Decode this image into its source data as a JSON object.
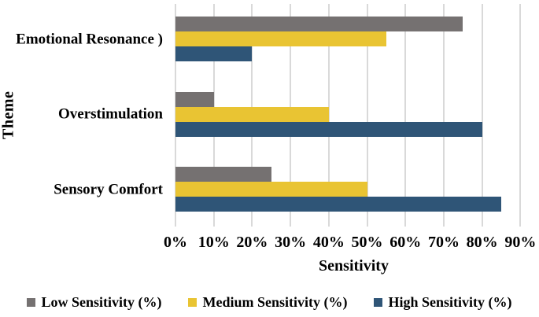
{
  "figure": {
    "background": "#ffffff",
    "text_color": "#000000"
  },
  "chart_data": {
    "type": "bar",
    "orientation": "horizontal",
    "title": "",
    "xlabel": "Sensitivity",
    "ylabel": "Theme",
    "categories": [
      "Emotional Resonance )",
      "Overstimulation",
      "Sensory Comfort"
    ],
    "series": [
      {
        "name": "Low Sensitivity (%)",
        "color": "#757171",
        "values": [
          75,
          10,
          25
        ]
      },
      {
        "name": "Medium Sensitivity (%)",
        "color": "#E9C433",
        "values": [
          55,
          40,
          50
        ]
      },
      {
        "name": "High Sensitivity (%)",
        "color": "#2F5577",
        "values": [
          20,
          80,
          85
        ]
      }
    ],
    "x_ticks": [
      "0%",
      "10%",
      "20%",
      "30%",
      "40%",
      "50%",
      "60%",
      "70%",
      "80%",
      "90%"
    ],
    "x_tick_values": [
      0,
      10,
      20,
      30,
      40,
      50,
      60,
      70,
      80,
      90
    ],
    "xlim": [
      0,
      93
    ],
    "grid": true,
    "gridline_color": "#D9D9D9",
    "legend_position": "bottom"
  }
}
